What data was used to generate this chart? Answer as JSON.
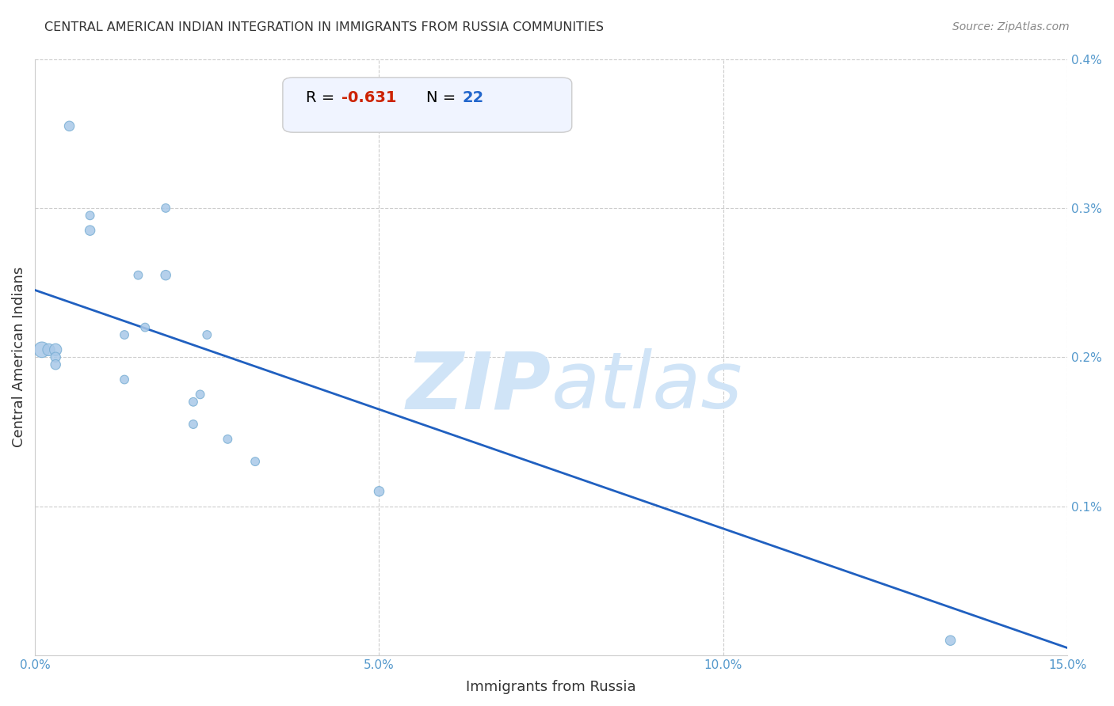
{
  "title": "CENTRAL AMERICAN INDIAN INTEGRATION IN IMMIGRANTS FROM RUSSIA COMMUNITIES",
  "source": "Source: ZipAtlas.com",
  "xlabel": "Immigrants from Russia",
  "ylabel": "Central American Indians",
  "R": -0.631,
  "N": 22,
  "xlim": [
    0.0,
    0.15
  ],
  "ylim": [
    0.0,
    0.004
  ],
  "xticks": [
    0.0,
    0.05,
    0.1,
    0.15
  ],
  "xtick_labels": [
    "0.0%",
    "5.0%",
    "10.0%",
    "15.0%"
  ],
  "yticks": [
    0.001,
    0.002,
    0.003,
    0.004
  ],
  "ytick_labels": [
    "0.1%",
    "0.2%",
    "0.3%",
    "0.4%"
  ],
  "scatter_color": "#a8c8e8",
  "scatter_edge_color": "#7aafd4",
  "line_color": "#2060c0",
  "watermark_color": "#d0e4f7",
  "title_color": "#333333",
  "axis_label_color": "#333333",
  "tick_color": "#5599cc",
  "grid_color": "#cccccc",
  "annotation_box_color": "#f0f4ff",
  "annotation_border_color": "#cccccc",
  "R_color": "#cc2200",
  "N_color": "#2266cc",
  "line_intercept": 0.00245,
  "line_end_y": 5e-05,
  "points_x": [
    0.005,
    0.008,
    0.008,
    0.013,
    0.015,
    0.016,
    0.001,
    0.002,
    0.003,
    0.003,
    0.003,
    0.013,
    0.019,
    0.019,
    0.023,
    0.023,
    0.024,
    0.025,
    0.028,
    0.032,
    0.05,
    0.133
  ],
  "points_y": [
    0.00355,
    0.00295,
    0.00285,
    0.00215,
    0.00255,
    0.0022,
    0.00205,
    0.00205,
    0.00205,
    0.002,
    0.00195,
    0.00185,
    0.003,
    0.00255,
    0.0017,
    0.00155,
    0.00175,
    0.00215,
    0.00145,
    0.0013,
    0.0011,
    0.0001
  ],
  "points_size": [
    80,
    60,
    80,
    60,
    60,
    60,
    200,
    120,
    120,
    80,
    80,
    60,
    60,
    80,
    60,
    60,
    60,
    60,
    60,
    60,
    80,
    80
  ]
}
